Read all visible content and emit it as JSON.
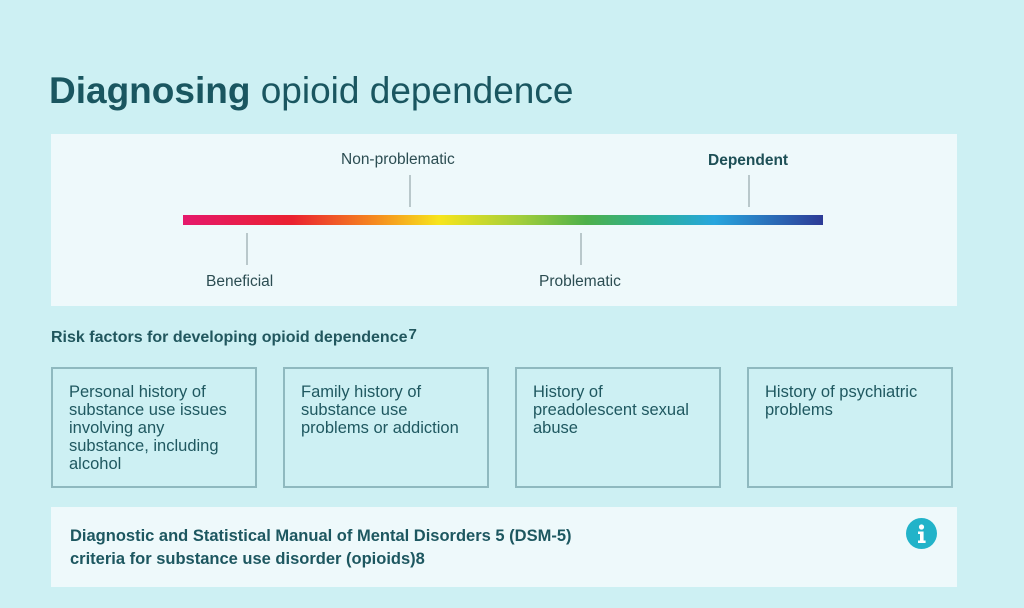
{
  "title": {
    "bold": "Diagnosing",
    "rest": " opioid dependence"
  },
  "scale": {
    "labels": {
      "non_problematic": "Non-problematic",
      "dependent": "Dependent",
      "beneficial": "Beneficial",
      "problematic": "Problematic"
    },
    "gradient_colors": [
      "#e5196c",
      "#ea2130",
      "#f58a1f",
      "#f7e51c",
      "#9fcd3b",
      "#4db04a",
      "#2ab09b",
      "#27a6de",
      "#2d3b96"
    ]
  },
  "risk": {
    "heading": "Risk factors for developing opioid dependence",
    "heading_ref": "7",
    "cards": [
      "Personal history of substance use issues involving any substance, including alcohol",
      "Family history of substance use problems or addiction",
      "History of preadolescent sexual abuse",
      "History of psychiatric problems"
    ]
  },
  "dsm": {
    "line1": "Diagnostic and Statistical Manual of Mental Disorders 5 (DSM-5)",
    "line2": "criteria for substance use disorder (opioids)8",
    "icon": "info-icon"
  },
  "colors": {
    "background": "#cdf0f3",
    "panel": "#eef9fb",
    "text": "#1d5b63",
    "card_border": "#8fb9bf",
    "info_accent": "#22b3c9"
  }
}
